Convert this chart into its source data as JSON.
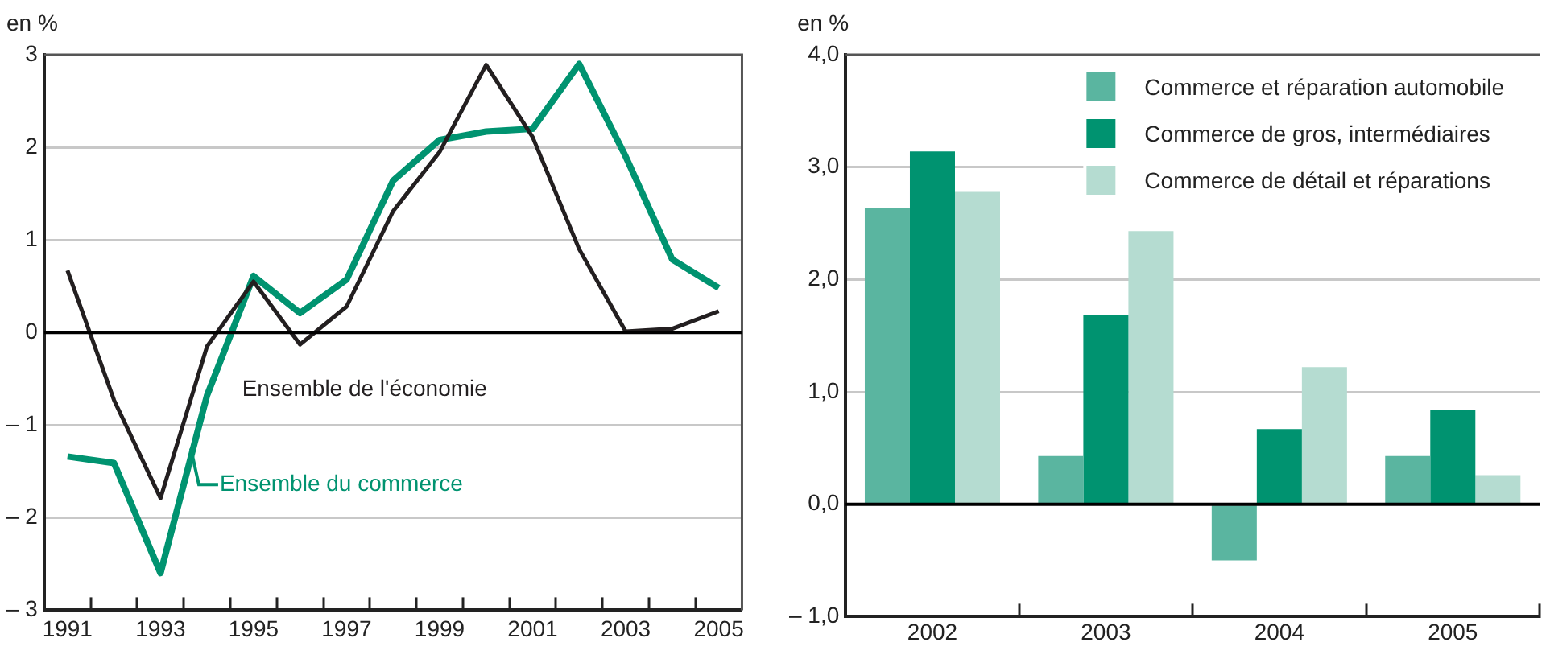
{
  "chart_data": [
    {
      "type": "line",
      "ylabel": "en %",
      "x": [
        1991,
        1992,
        1993,
        1994,
        1995,
        1996,
        1997,
        1998,
        1999,
        2000,
        2001,
        2002,
        2003,
        2004,
        2005
      ],
      "xlim": [
        1990.5,
        2005.5
      ],
      "xticks": [
        1991,
        {
          "value": 1991.5,
          "label": null
        },
        {
          "value": 1992.5,
          "label": null
        },
        1993,
        {
          "value": 1993.5,
          "label": null
        },
        {
          "value": 1994.5,
          "label": null
        },
        1995,
        {
          "value": 1995.5,
          "label": null
        },
        {
          "value": 1996.5,
          "label": null
        },
        1997,
        {
          "value": 1997.5,
          "label": null
        },
        {
          "value": 1998.5,
          "label": null
        },
        1999,
        {
          "value": 1999.5,
          "label": null
        },
        {
          "value": 2000.5,
          "label": null
        },
        2001,
        {
          "value": 2001.5,
          "label": null
        },
        {
          "value": 2002.5,
          "label": null
        },
        2003,
        {
          "value": 2003.5,
          "label": null
        },
        {
          "value": 2004.5,
          "label": null
        },
        2005
      ],
      "ylim": [
        -3,
        3
      ],
      "yticks": [
        {
          "value": -3,
          "label": "– 3"
        },
        {
          "value": -2,
          "label": "– 2"
        },
        {
          "value": -1,
          "label": "– 1"
        },
        0,
        1,
        2,
        3
      ],
      "grid": "y",
      "legend": false,
      "marker": "none",
      "ref_lines": [
        {
          "axis": "y",
          "value": 0,
          "color": "#000000"
        }
      ],
      "series": [
        {
          "name": "Ensemble de l'économie",
          "color": "#231f20",
          "values": [
            0.67,
            -0.73,
            -1.79,
            -0.15,
            0.55,
            -0.13,
            0.28,
            1.31,
            1.95,
            2.89,
            2.11,
            0.9,
            0.01,
            0.04,
            0.23
          ]
        },
        {
          "name": "Ensemble du commerce",
          "color": "#009370",
          "values": [
            -1.34,
            -1.41,
            -2.6,
            -0.68,
            0.61,
            0.21,
            0.57,
            1.64,
            2.08,
            2.17,
            2.2,
            2.9,
            1.9,
            0.79,
            0.48
          ]
        }
      ]
    },
    {
      "type": "bar",
      "ylabel": "en %",
      "categories": [
        "2002",
        "2003",
        "2004",
        "2005"
      ],
      "ylim": [
        -1,
        4
      ],
      "yticks": [
        {
          "value": -1,
          "label": "– 1,0"
        },
        {
          "value": 0,
          "label": "0,0"
        },
        {
          "value": 1,
          "label": "1,0"
        },
        {
          "value": 2,
          "label": "2,0"
        },
        {
          "value": 3,
          "label": "3,0"
        },
        {
          "value": 4,
          "label": "4,0"
        }
      ],
      "grid": "y",
      "legend": "top right",
      "ref_lines": [
        {
          "axis": "y",
          "value": 0,
          "color": "#000000"
        }
      ],
      "series": [
        {
          "name": "Commerce et réparation automobile",
          "color": "#5ab5a0",
          "values": [
            2.64,
            0.43,
            -0.5,
            0.43
          ]
        },
        {
          "name": "Commerce de gros, intermédiaires",
          "color": "#009370",
          "values": [
            3.14,
            1.68,
            0.67,
            0.84
          ]
        },
        {
          "name": "Commerce de détail et réparations",
          "color": "#b5dcd1",
          "values": [
            2.78,
            2.43,
            1.22,
            0.26
          ]
        }
      ]
    }
  ]
}
